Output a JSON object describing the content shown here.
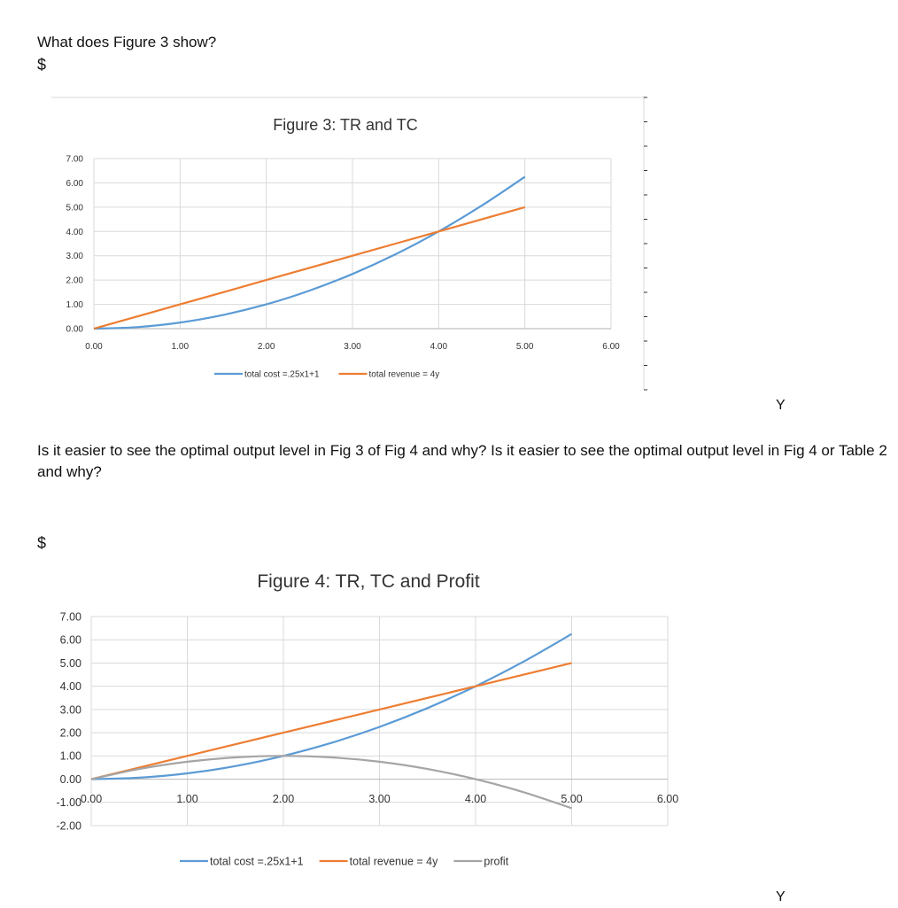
{
  "question1": "What does Figure 3 show?",
  "currency1": "$",
  "question2": "Is it easier to see the optimal output level in Fig 3 of Fig 4 and why? Is it easier to see the optimal output level in Fig 4 or Table 2 and why?",
  "currency2": "$",
  "axis_y_label1": "Y",
  "axis_y_label2": "Y",
  "colors": {
    "total_cost": "#5b9bd5",
    "total_revenue": "#ed7d31",
    "profit": "#a5a5a5",
    "grid": "#d9d9d9"
  },
  "chart_data": [
    {
      "type": "line",
      "title": "Figure 3: TR and TC",
      "xlim": [
        0,
        6
      ],
      "ylim": [
        0,
        7
      ],
      "x_ticks": [
        "0.00",
        "1.00",
        "2.00",
        "3.00",
        "4.00",
        "5.00",
        "6.00"
      ],
      "y_ticks": [
        "0.00",
        "1.00",
        "2.00",
        "3.00",
        "4.00",
        "5.00",
        "6.00",
        "7.00"
      ],
      "x": [
        0,
        0.5,
        1,
        1.5,
        2,
        2.5,
        3,
        3.5,
        4,
        4.5,
        5
      ],
      "series": [
        {
          "name": "total cost =.25x1+1",
          "color": "#5b9bd5",
          "values": [
            0,
            0.0625,
            0.25,
            0.5625,
            1,
            1.5625,
            2.25,
            3.0625,
            4,
            5.0625,
            6.25
          ]
        },
        {
          "name": "total revenue = 4y",
          "color": "#ed7d31",
          "values": [
            0,
            0.5,
            1,
            1.5,
            2,
            2.5,
            3,
            3.5,
            4,
            4.5,
            5
          ]
        }
      ],
      "grid": true,
      "legend": "bottom"
    },
    {
      "type": "line",
      "title": "Figure 4: TR, TC and Profit",
      "xlim": [
        0,
        6
      ],
      "ylim": [
        -2,
        7
      ],
      "x_ticks": [
        "0.00",
        "1.00",
        "2.00",
        "3.00",
        "4.00",
        "5.00",
        "6.00"
      ],
      "y_ticks": [
        "-2.00",
        "-1.00",
        "0.00",
        "1.00",
        "2.00",
        "3.00",
        "4.00",
        "5.00",
        "6.00",
        "7.00"
      ],
      "x": [
        0,
        0.5,
        1,
        1.5,
        2,
        2.5,
        3,
        3.5,
        4,
        4.5,
        5
      ],
      "series": [
        {
          "name": "total cost =.25x1+1",
          "color": "#5b9bd5",
          "values": [
            0,
            0.0625,
            0.25,
            0.5625,
            1,
            1.5625,
            2.25,
            3.0625,
            4,
            5.0625,
            6.25
          ]
        },
        {
          "name": "total revenue = 4y",
          "color": "#ed7d31",
          "values": [
            0,
            0.5,
            1,
            1.5,
            2,
            2.5,
            3,
            3.5,
            4,
            4.5,
            5
          ]
        },
        {
          "name": "profit",
          "color": "#a5a5a5",
          "values": [
            0,
            0.4375,
            0.75,
            0.9375,
            1,
            0.9375,
            0.75,
            0.4375,
            0,
            -0.5625,
            -1.25
          ]
        }
      ],
      "grid": true,
      "legend": "bottom"
    }
  ]
}
